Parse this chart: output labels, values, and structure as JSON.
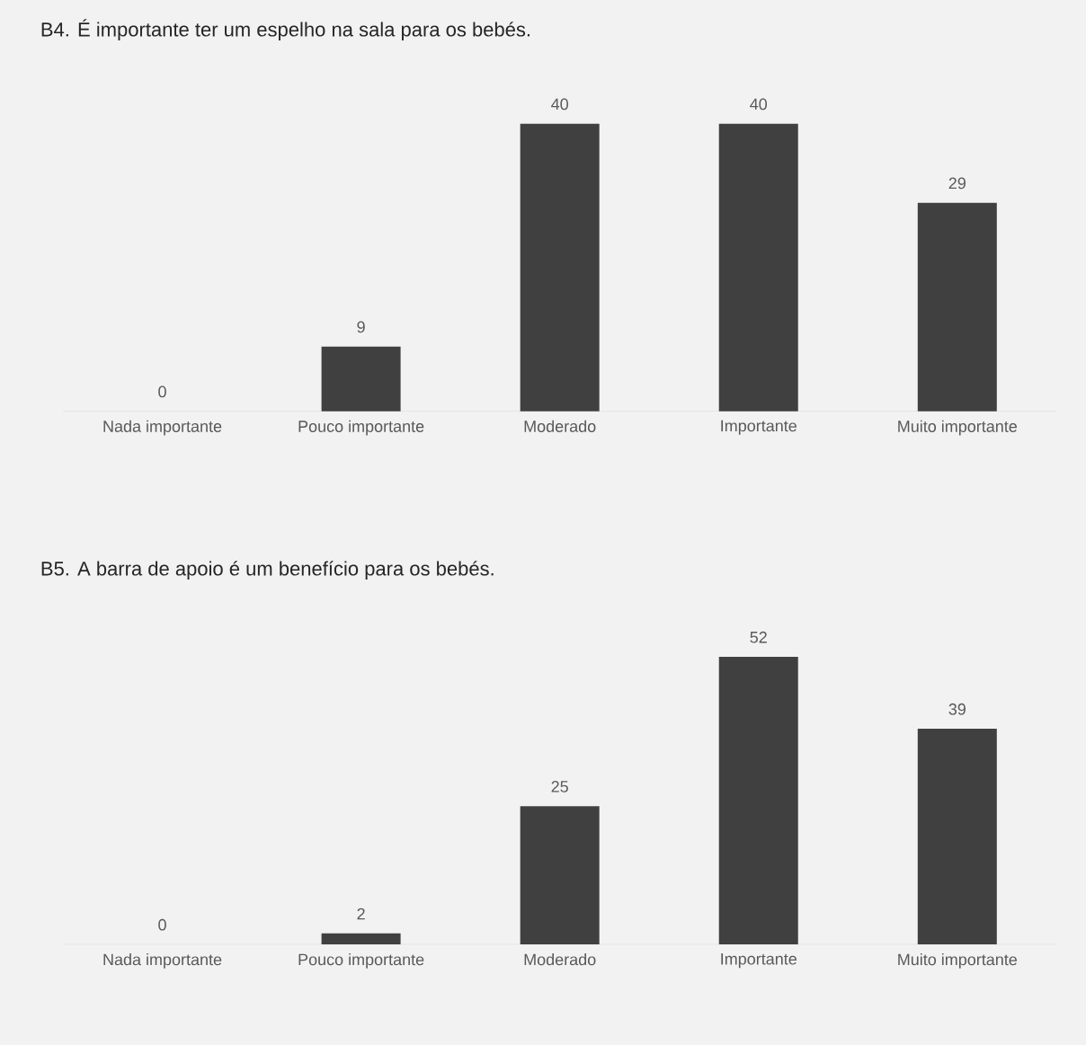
{
  "chart_data": [
    {
      "type": "bar",
      "title": "B4. É importante ter um espelho na sala para os bebés.",
      "categories": [
        "Nada importante",
        "Pouco importante",
        "Moderado",
        "Importante",
        "Muito importante"
      ],
      "values": [
        0,
        9,
        40,
        40,
        29
      ],
      "color": "#404040",
      "data_labels": true
    },
    {
      "type": "bar",
      "title": "B5. A barra de apoio é um benefício para os bebés.",
      "categories": [
        "Nada importante",
        "Pouco importante",
        "Moderado",
        "Importante",
        "Muito importante"
      ],
      "values": [
        0,
        2,
        25,
        52,
        39
      ],
      "color": "#404040",
      "data_labels": true
    }
  ]
}
